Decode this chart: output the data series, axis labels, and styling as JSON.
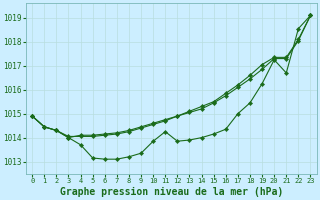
{
  "title": "Graphe pression niveau de la mer (hPa)",
  "bg_color": "#cceeff",
  "line_color": "#1a6b1a",
  "grid_color": "#b8dede",
  "x_ticks": [
    0,
    1,
    2,
    3,
    4,
    5,
    6,
    7,
    8,
    9,
    10,
    11,
    12,
    13,
    14,
    15,
    16,
    17,
    18,
    19,
    20,
    21,
    22,
    23
  ],
  "y_ticks": [
    1013,
    1014,
    1015,
    1016,
    1017,
    1018,
    1019
  ],
  "ylim": [
    1012.5,
    1019.6
  ],
  "xlim": [
    -0.5,
    23.5
  ],
  "line1_y": [
    1014.9,
    1014.45,
    1014.3,
    1014.0,
    1013.7,
    1013.15,
    1013.1,
    1013.1,
    1013.2,
    1013.35,
    1013.85,
    1014.25,
    1013.85,
    1013.9,
    1014.0,
    1014.15,
    1014.35,
    1015.0,
    1015.45,
    1016.25,
    1017.25,
    1016.7,
    1018.55,
    1019.1
  ],
  "line2_y": [
    1014.9,
    1014.45,
    1014.3,
    1014.0,
    1014.1,
    1014.1,
    1014.15,
    1014.2,
    1014.3,
    1014.45,
    1014.6,
    1014.75,
    1014.9,
    1015.05,
    1015.2,
    1015.45,
    1015.75,
    1016.1,
    1016.45,
    1016.85,
    1017.3,
    1017.3,
    1018.05,
    1019.1
  ],
  "line3_y": [
    1014.9,
    1014.45,
    1014.3,
    1014.05,
    1014.05,
    1014.05,
    1014.1,
    1014.15,
    1014.25,
    1014.4,
    1014.55,
    1014.7,
    1014.9,
    1015.1,
    1015.3,
    1015.5,
    1015.85,
    1016.2,
    1016.6,
    1017.05,
    1017.35,
    1017.35,
    1018.1,
    1019.1
  ],
  "spine_color": "#7ab8b8",
  "tick_fontsize": 5.5,
  "title_fontsize": 7,
  "marker": "D",
  "markersize": 2.2,
  "linewidth": 0.8
}
